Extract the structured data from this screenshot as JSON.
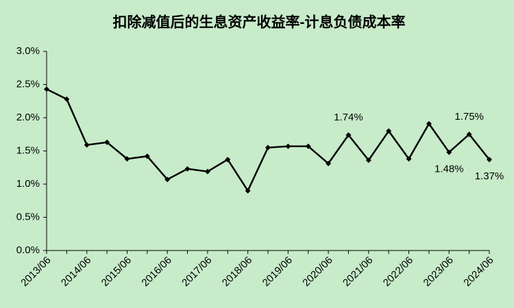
{
  "chart_data": {
    "type": "line",
    "title": "扣除减值后的生息资产收益率-计息负债成本率",
    "categories": [
      "2013/06",
      null,
      "2014/06",
      null,
      "2015/06",
      null,
      "2016/06",
      null,
      "2017/06",
      null,
      "2018/06",
      null,
      "2019/06",
      null,
      "2020/06",
      null,
      "2021/06",
      null,
      "2022/06",
      null,
      "2023/06",
      null,
      "2024/06"
    ],
    "series": [
      {
        "color": "#000000",
        "values": [
          2.43,
          2.28,
          1.59,
          1.63,
          1.38,
          1.42,
          1.07,
          1.23,
          1.19,
          1.37,
          0.9,
          1.55,
          1.57,
          1.57,
          1.31,
          1.74,
          1.36,
          1.8,
          1.38,
          1.91,
          1.48,
          1.75,
          1.37
        ],
        "value_labels": [
          null,
          null,
          null,
          null,
          null,
          null,
          null,
          null,
          null,
          null,
          null,
          null,
          null,
          null,
          null,
          "1.74%",
          null,
          null,
          null,
          null,
          "1.48%",
          "1.75%",
          "1.37%"
        ]
      }
    ],
    "ylim": [
      0,
      3.0
    ],
    "yticks": [
      {
        "value": 0,
        "label": "0.0%"
      },
      {
        "value": 0.5,
        "label": "0.5%"
      },
      {
        "value": 1.0,
        "label": "1.0%"
      },
      {
        "value": 1.5,
        "label": "1.5%"
      },
      {
        "value": 2.0,
        "label": "2.0%"
      },
      {
        "value": 2.5,
        "label": "2.5%"
      },
      {
        "value": 3.0,
        "label": "3.0%"
      }
    ],
    "grid": false
  }
}
